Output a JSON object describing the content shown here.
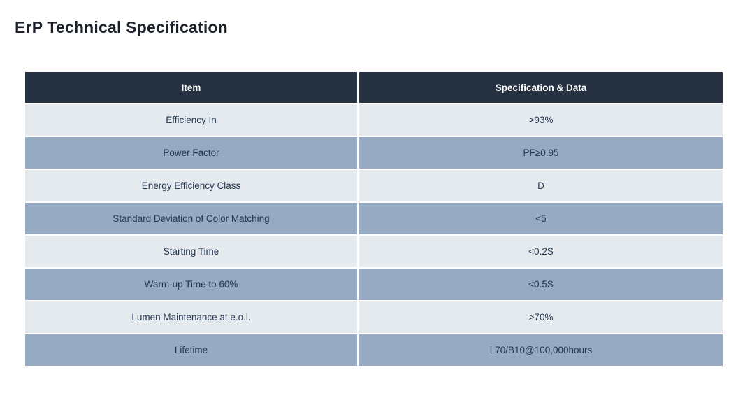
{
  "page": {
    "background": "#ffffff",
    "title": "ErP Technical Specification"
  },
  "table": {
    "headers": [
      "Item",
      "Specification & Data"
    ],
    "rows": [
      {
        "item": "Efficiency In",
        "value": ">93%"
      },
      {
        "item": "Power Factor",
        "value": "PF≥0.95"
      },
      {
        "item": "Energy Efficiency Class",
        "value": "D"
      },
      {
        "item": "Standard Deviation of Color Matching",
        "value": "<5"
      },
      {
        "item": "Starting Time",
        "value": "<0.2S"
      },
      {
        "item": "Warm-up Time to 60%",
        "value": "<0.5S"
      },
      {
        "item": "Lumen Maintenance at e.o.l.",
        "value": ">70%"
      },
      {
        "item": "Lifetime",
        "value": "L70/B10@100,000hours"
      }
    ],
    "colors": {
      "title_text": "#1d222d",
      "header_bg": "#263241",
      "header_text": "#ffffff",
      "row_light_bg": "#e5eaef",
      "row_blue_bg": "#97aac3",
      "row_text": "#253851",
      "divider": "#ffffff"
    }
  }
}
